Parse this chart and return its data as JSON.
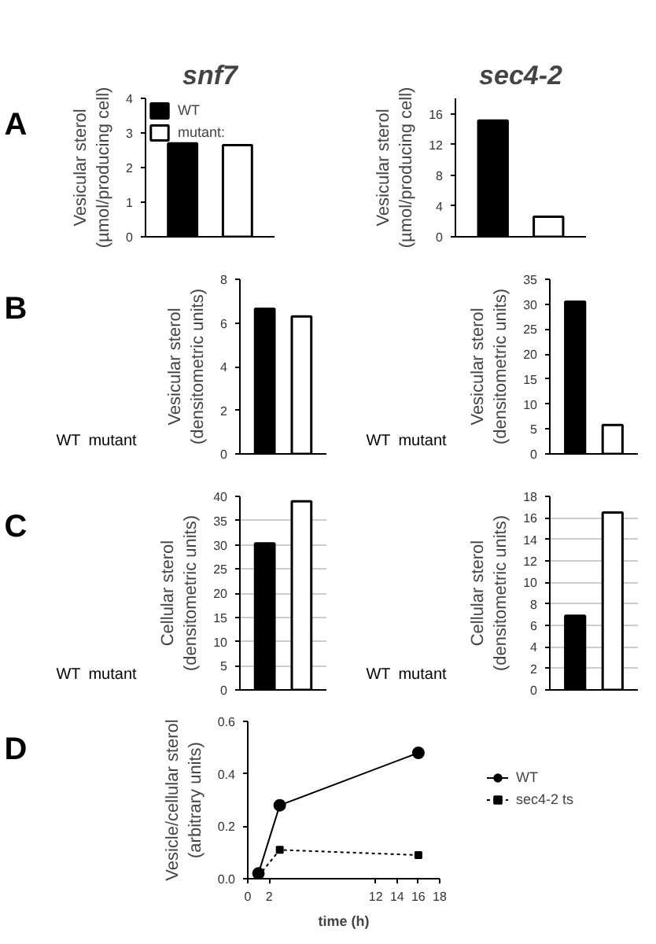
{
  "chart_data": [
    {
      "type": "bar",
      "title": "snf7",
      "annotations": [
        "A"
      ],
      "ylabel": "Vesicular sterol\n(µmol/producing cell)",
      "categories": [
        null
      ],
      "legend": "top left",
      "ylim": [
        0,
        4
      ],
      "yticks": [
        0,
        1,
        2,
        3,
        4
      ],
      "series": [
        {
          "name": "WT",
          "color": "#000000",
          "values": [
            2.7
          ]
        },
        {
          "name": "mutant:",
          "color": "#ffffff",
          "values": [
            2.65
          ]
        }
      ]
    },
    {
      "type": "bar",
      "title": "sec4-2",
      "ylabel": "Vesicular sterol\n(µmol/producing cell)",
      "categories": [
        null
      ],
      "ylim": [
        0,
        18
      ],
      "yticks": [
        0,
        4,
        8,
        12,
        16
      ],
      "series": [
        {
          "color": "#000000",
          "values": [
            15.1
          ]
        },
        {
          "color": "#ffffff",
          "values": [
            2.6
          ]
        }
      ]
    },
    {
      "type": "bar",
      "annotations": [
        "B",
        "WT",
        "mutant"
      ],
      "ylabel": "Vesicular sterol\n(densitometric units)",
      "categories": [
        null
      ],
      "ylim": [
        0,
        8
      ],
      "yticks": [
        0,
        2,
        4,
        6,
        8
      ],
      "series": [
        {
          "color": "#000000",
          "values": [
            6.65
          ]
        },
        {
          "color": "#ffffff",
          "values": [
            6.3
          ]
        }
      ]
    },
    {
      "type": "bar",
      "annotations": [
        "WT",
        "mutant"
      ],
      "ylabel": "Vesicular sterol\n(densitometric units)",
      "categories": [
        null
      ],
      "ylim": [
        0,
        35
      ],
      "yticks": [
        0,
        5,
        10,
        15,
        20,
        25,
        30,
        35
      ],
      "series": [
        {
          "color": "#000000",
          "values": [
            30.5
          ]
        },
        {
          "color": "#ffffff",
          "values": [
            5.8
          ]
        }
      ]
    },
    {
      "type": "bar",
      "annotations": [
        "C",
        "WT",
        "mutant"
      ],
      "ylabel": "Cellular sterol\n(densitometric units)",
      "categories": [
        null
      ],
      "grid": "y",
      "ylim": [
        0,
        40
      ],
      "yticks": [
        0,
        5,
        10,
        15,
        20,
        25,
        30,
        35,
        40
      ],
      "series": [
        {
          "color": "#000000",
          "values": [
            30.3
          ]
        },
        {
          "color": "#ffffff",
          "values": [
            39
          ]
        }
      ]
    },
    {
      "type": "bar",
      "annotations": [
        "WT",
        "mutant"
      ],
      "ylabel": "Cellular sterol\n(densitometric units)",
      "categories": [
        null
      ],
      "grid": "y",
      "ylim": [
        0,
        18
      ],
      "yticks": [
        0,
        2,
        4,
        6,
        8,
        10,
        12,
        14,
        16,
        18
      ],
      "series": [
        {
          "color": "#000000",
          "values": [
            6.9
          ]
        },
        {
          "color": "#ffffff",
          "values": [
            16.5
          ]
        }
      ]
    },
    {
      "type": "line",
      "annotations": [
        "D"
      ],
      "ylabel": "Vesicle/cellular sterol\n(arbitrary units)",
      "xlabel": "time (h)",
      "legend": "right",
      "xlim": [
        0,
        18
      ],
      "xticks": [
        0,
        2,
        12,
        14,
        16,
        18
      ],
      "ylim": [
        0,
        0.6
      ],
      "yticks": [
        {
          "value": 0,
          "label": "0.0"
        },
        0.2,
        0.4,
        0.6
      ],
      "series": [
        {
          "name": "WT",
          "color": "#000000",
          "x": [
            1,
            3,
            16
          ],
          "values": [
            0.02,
            0.28,
            0.48
          ],
          "marker": "circle",
          "line_style": "solid"
        },
        {
          "name": "sec4-2 ts",
          "color": "#000000",
          "x": [
            1,
            3,
            16
          ],
          "values": [
            0.01,
            0.11,
            0.09
          ],
          "marker": "square",
          "line_style": "dotted"
        }
      ]
    }
  ]
}
